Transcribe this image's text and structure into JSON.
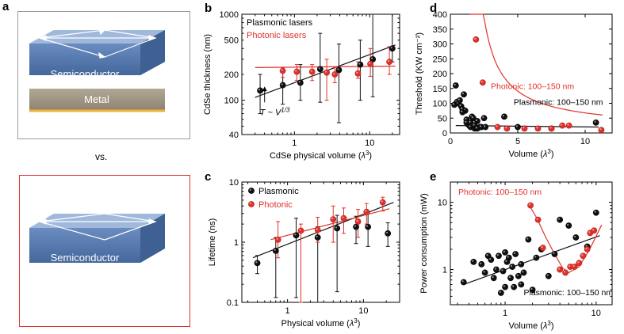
{
  "panels": {
    "a": {
      "label": "a",
      "vs": "vs.",
      "block1": {
        "top": "Semiconductor",
        "bottom": "Metal"
      },
      "block2": {
        "top": "Semiconductor"
      }
    },
    "b": {
      "label": "b"
    },
    "c": {
      "label": "c"
    },
    "d": {
      "label": "d"
    },
    "e": {
      "label": "e"
    }
  },
  "colors": {
    "plasmonic": "#111111",
    "photonic": "#e0312b",
    "semiconductor": "#5579ad",
    "metal": "#9d9180",
    "metal_edge": "#f2b23a"
  },
  "chart_data": [
    {
      "id": "b",
      "type": "scatter",
      "xlabel": "CdSe physical volume (λ³)",
      "ylabel": "CdSe thickness (nm)",
      "xscale": "log",
      "yscale": "log",
      "xlim": [
        0.2,
        25
      ],
      "ylim": [
        40,
        1000
      ],
      "yticks": [
        40,
        100,
        200,
        500,
        1000
      ],
      "legend": [
        "Plasmonic lasers",
        "Photonic lasers"
      ],
      "legend_position": "top-left",
      "annotation": "T ~ V^1/3",
      "series": [
        {
          "name": "Plasmonic lasers",
          "color": "#111111",
          "x": [
            0.35,
            0.7,
            1.2,
            2.2,
            3.9,
            7.5,
            11,
            20
          ],
          "y": [
            130,
            150,
            160,
            230,
            225,
            260,
            300,
            400
          ],
          "err_low": [
            70,
            90,
            100,
            95,
            55,
            100,
            110,
            280
          ],
          "err_high": [
            200,
            230,
            260,
            600,
            450,
            500,
            1000,
            1000
          ]
        },
        {
          "name": "Photonic lasers",
          "color": "#e0312b",
          "x": [
            0.65,
            1.0,
            1.6,
            2.5,
            3.2,
            6.5,
            9.5,
            17
          ],
          "y": [
            220,
            215,
            215,
            210,
            200,
            205,
            265,
            280
          ],
          "err_low": [
            185,
            170,
            170,
            100,
            160,
            180,
            190,
            200
          ],
          "err_high": [
            240,
            260,
            260,
            300,
            240,
            280,
            400,
            420
          ]
        }
      ],
      "fits": [
        {
          "color": "#111111",
          "x": [
            0.3,
            22
          ],
          "y": [
            108,
            440
          ]
        },
        {
          "color": "#e0312b",
          "x": [
            0.3,
            22
          ],
          "y": [
            240,
            250
          ]
        }
      ]
    },
    {
      "id": "c",
      "type": "scatter",
      "xlabel": "Physical volume (λ³)",
      "ylabel": "Lifetime (ns)",
      "xscale": "log",
      "yscale": "log",
      "xlim": [
        0.25,
        30
      ],
      "ylim": [
        0.1,
        10
      ],
      "legend": [
        "Plasmonic",
        "Photonic"
      ],
      "legend_position": "top-left",
      "series": [
        {
          "name": "Plasmonic",
          "color": "#111111",
          "x": [
            0.4,
            0.7,
            1.3,
            2.5,
            4.5,
            8.0,
            11.5,
            21
          ],
          "y": [
            0.45,
            0.72,
            1.3,
            1.2,
            1.7,
            1.8,
            1.8,
            1.4
          ],
          "err_low": [
            0.3,
            0.12,
            0.12,
            0.1,
            0.15,
            0.95,
            0.85,
            0.85
          ],
          "err_high": [
            0.6,
            1.2,
            2.5,
            1.8,
            2.8,
            2.7,
            3.1,
            2.1
          ]
        },
        {
          "name": "Photonic",
          "color": "#e0312b",
          "x": [
            0.75,
            1.5,
            2.5,
            4.0,
            5.5,
            8.5,
            11,
            18
          ],
          "y": [
            1.1,
            1.55,
            1.6,
            2.4,
            2.5,
            2.2,
            3.2,
            4.6
          ],
          "err_low": [
            0.55,
            0.1,
            1.0,
            1.0,
            1.4,
            1.2,
            2.0,
            3.3
          ],
          "err_high": [
            2.2,
            2.0,
            2.6,
            4.0,
            3.7,
            3.5,
            4.4,
            5.6
          ]
        }
      ],
      "fits": [
        {
          "color": "#111111",
          "x": [
            0.35,
            25
          ],
          "y": [
            0.55,
            4.6
          ]
        },
        {
          "color": "#e0312b",
          "x": [
            0.6,
            22
          ],
          "y": [
            1.1,
            3.6
          ]
        }
      ]
    },
    {
      "id": "d",
      "type": "scatter",
      "xlabel": "Volume (λ³)",
      "ylabel": "Threshold (KW cm⁻²)",
      "xscale": "linear",
      "yscale": "linear",
      "xlim": [
        0,
        12
      ],
      "ylim": [
        0,
        400
      ],
      "xticks": [
        0,
        5,
        10
      ],
      "yticks": [
        0,
        50,
        100,
        150,
        200,
        250,
        300,
        350,
        400
      ],
      "annotations": [
        "Photonic: 100–150 nm",
        "Plasmonic: 100–150 nm"
      ],
      "series": [
        {
          "name": "Plasmonic",
          "color": "#111111",
          "x": [
            0.3,
            0.4,
            0.5,
            0.6,
            0.7,
            0.8,
            0.9,
            1.0,
            1.1,
            1.2,
            1.3,
            1.4,
            1.5,
            1.6,
            1.7,
            1.8,
            2.0,
            2.2,
            2.5,
            0.9,
            1.2,
            1.5,
            1.8,
            2.0,
            2.3,
            2.6,
            4.0,
            5.0,
            7.5,
            10.8
          ],
          "y": [
            95,
            160,
            105,
            100,
            110,
            90,
            80,
            130,
            75,
            45,
            30,
            25,
            20,
            55,
            50,
            15,
            40,
            20,
            50,
            70,
            35,
            35,
            25,
            15,
            20,
            20,
            55,
            20,
            15,
            35
          ]
        },
        {
          "name": "Photonic",
          "color": "#e0312b",
          "x": [
            1.9,
            2.4,
            3.5,
            4.2,
            5.5,
            6.5,
            7.5,
            8.3,
            8.8,
            11.2
          ],
          "y": [
            315,
            170,
            20,
            15,
            15,
            15,
            15,
            25,
            25,
            10
          ]
        }
      ],
      "fits": [
        {
          "color": "#e0312b",
          "kind": "hyperbola",
          "a": 490,
          "b": -1.2,
          "c": 12,
          "x0": 1.45,
          "x1": 11.3
        },
        {
          "color": "#111111",
          "kind": "linear",
          "x": [
            0.4,
            11
          ],
          "y": [
            25,
            20
          ]
        }
      ]
    },
    {
      "id": "e",
      "type": "scatter",
      "xlabel": "Volume (λ³)",
      "ylabel": "Power consumption (mW)",
      "xscale": "log",
      "yscale": "log",
      "xlim": [
        0.25,
        15
      ],
      "ylim": [
        0.3,
        20
      ],
      "annotations": [
        "Photonic: 100–150 nm",
        "Plasmonic: 100–150 nm"
      ],
      "series": [
        {
          "name": "Plasmonic",
          "color": "#111111",
          "x": [
            0.35,
            0.45,
            0.55,
            0.6,
            0.65,
            0.7,
            0.75,
            0.8,
            0.85,
            0.9,
            0.95,
            1.0,
            1.05,
            1.1,
            1.15,
            1.2,
            1.25,
            1.3,
            1.4,
            1.5,
            1.6,
            1.8,
            2.0,
            2.2,
            2.5,
            3.0,
            3.5,
            4.0,
            5.0,
            6.0,
            8.0,
            10.0,
            1.0,
            1.5
          ],
          "y": [
            0.65,
            1.3,
            1.2,
            0.9,
            1.6,
            1.4,
            0.75,
            1.0,
            1.6,
            0.45,
            0.95,
            0.55,
            1.3,
            1.5,
            0.75,
            1.1,
            0.55,
            1.7,
            0.8,
            1.2,
            0.9,
            2.8,
            0.5,
            1.5,
            2.0,
            0.8,
            1.7,
            5.5,
            4.5,
            3.0,
            2.2,
            7.0,
            1.8,
            0.6
          ]
        },
        {
          "name": "Photonic",
          "color": "#e0312b",
          "x": [
            1.9,
            2.3,
            2.6,
            4.0,
            4.6,
            5.2,
            5.8,
            6.5,
            7.2,
            8.0,
            8.6,
            9.5
          ],
          "y": [
            9.0,
            5.5,
            2.1,
            1.0,
            0.9,
            1.1,
            1.1,
            1.25,
            1.6,
            2.0,
            3.5,
            3.8
          ]
        }
      ],
      "fits": [
        {
          "color": "#111111",
          "kind": "line",
          "x": [
            0.35,
            11
          ],
          "y": [
            0.6,
            3.2
          ]
        },
        {
          "color": "#e0312b",
          "kind": "poly",
          "x": [
            1.8,
            2.2,
            2.8,
            3.5,
            4.3,
            5.0,
            6.5,
            8.5,
            11.5
          ],
          "y": [
            9.5,
            6.0,
            3.0,
            1.7,
            1.05,
            0.9,
            1.1,
            2.0,
            4.6
          ]
        }
      ]
    }
  ]
}
